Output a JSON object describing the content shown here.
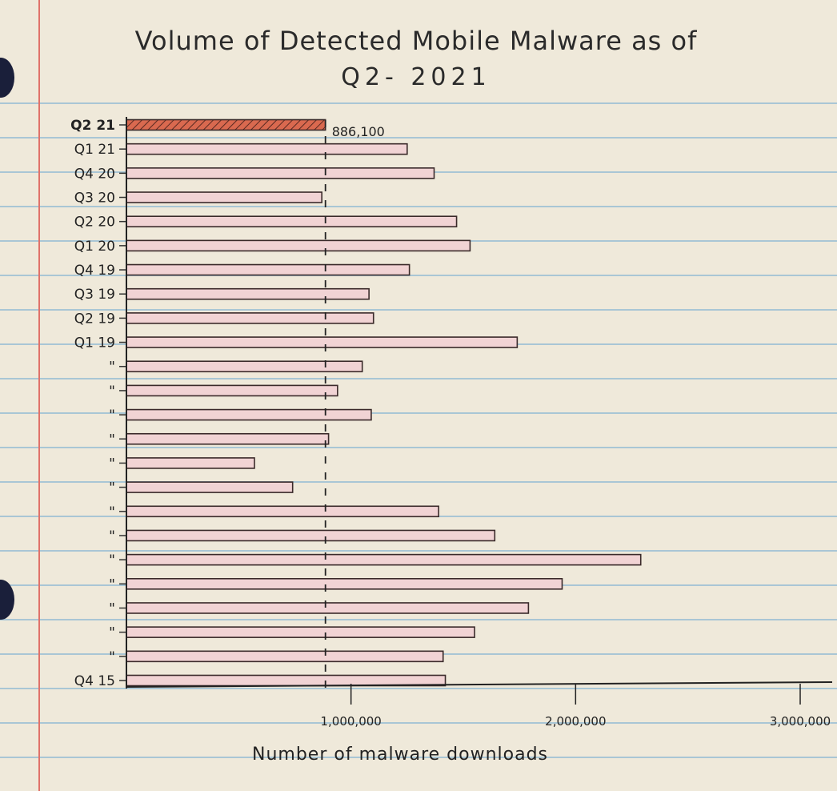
{
  "chart_data": {
    "type": "bar",
    "orientation": "horizontal",
    "title": "Volume of Detected Mobile Malware as of",
    "subtitle": "Q2- 2021",
    "xlabel": "Number of malware downloads",
    "ylabel": "",
    "xlim": [
      0,
      3000000
    ],
    "x_ticks": [
      {
        "value": 1000000,
        "label": "1,000,000"
      },
      {
        "value": 2000000,
        "label": "2,000,000"
      },
      {
        "value": 3000000,
        "label": "3,000,000"
      }
    ],
    "reference_line": 886100,
    "highlight_color": "#d9694f",
    "bar_color": "#f1d3d4",
    "categories": [
      "Q2 21",
      "Q1 21",
      "Q4 20",
      "Q3 20",
      "Q2 20",
      "Q1 20",
      "Q4 19",
      "Q3 19",
      "Q2 19",
      "Q1 19",
      "\"",
      "\"",
      "\"",
      "\"",
      "\"",
      "\"",
      "\"",
      "\"",
      "\"",
      "\"",
      "\"",
      "\"",
      "\"",
      "Q4 15"
    ],
    "values": [
      886100,
      1250000,
      1370000,
      870000,
      1470000,
      1530000,
      1260000,
      1080000,
      1100000,
      1740000,
      1050000,
      940000,
      1090000,
      900000,
      570000,
      740000,
      1390000,
      1640000,
      2290000,
      1940000,
      1790000,
      1550000,
      1410000,
      1420000
    ],
    "data_labels": [
      {
        "index": 0,
        "text": "886,100"
      }
    ],
    "highlight_index": 0,
    "grid": false,
    "legend": "none"
  }
}
